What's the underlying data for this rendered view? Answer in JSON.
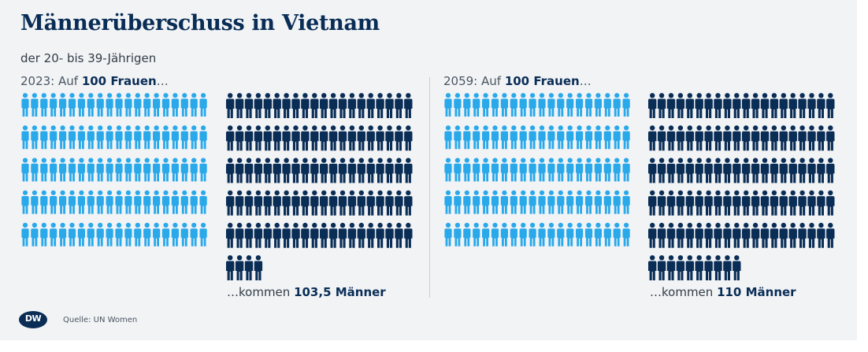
{
  "title": "Männerüberschuss in Vietnam",
  "subtitle": "der 20- bis 39-Jährigen",
  "source": "Quelle: UN Women",
  "logo": "DW",
  "colors": {
    "women": "#29a8ea",
    "men": "#0a2d56",
    "title": "#0a2d56",
    "background": "#f1f3f5"
  },
  "chart_data": [
    {
      "type": "pictogram",
      "year": "2023",
      "header": {
        "prefix": "2023: Auf ",
        "bold": "100 Frauen",
        "suffix": "…"
      },
      "footer": {
        "prefix": "…kommen ",
        "bold": "103,5 Männer"
      },
      "series": [
        {
          "name": "Frauen",
          "value": 100
        },
        {
          "name": "Männer",
          "value": 103.5
        }
      ],
      "icons_shown": {
        "women": 100,
        "men": 104
      }
    },
    {
      "type": "pictogram",
      "year": "2059",
      "header": {
        "prefix": "2059: Auf ",
        "bold": "100 Frauen",
        "suffix": "…"
      },
      "footer": {
        "prefix": "…kommen ",
        "bold": "110 Männer"
      },
      "series": [
        {
          "name": "Frauen",
          "value": 100
        },
        {
          "name": "Männer",
          "value": 110
        }
      ],
      "icons_shown": {
        "women": 100,
        "men": 110
      }
    }
  ]
}
